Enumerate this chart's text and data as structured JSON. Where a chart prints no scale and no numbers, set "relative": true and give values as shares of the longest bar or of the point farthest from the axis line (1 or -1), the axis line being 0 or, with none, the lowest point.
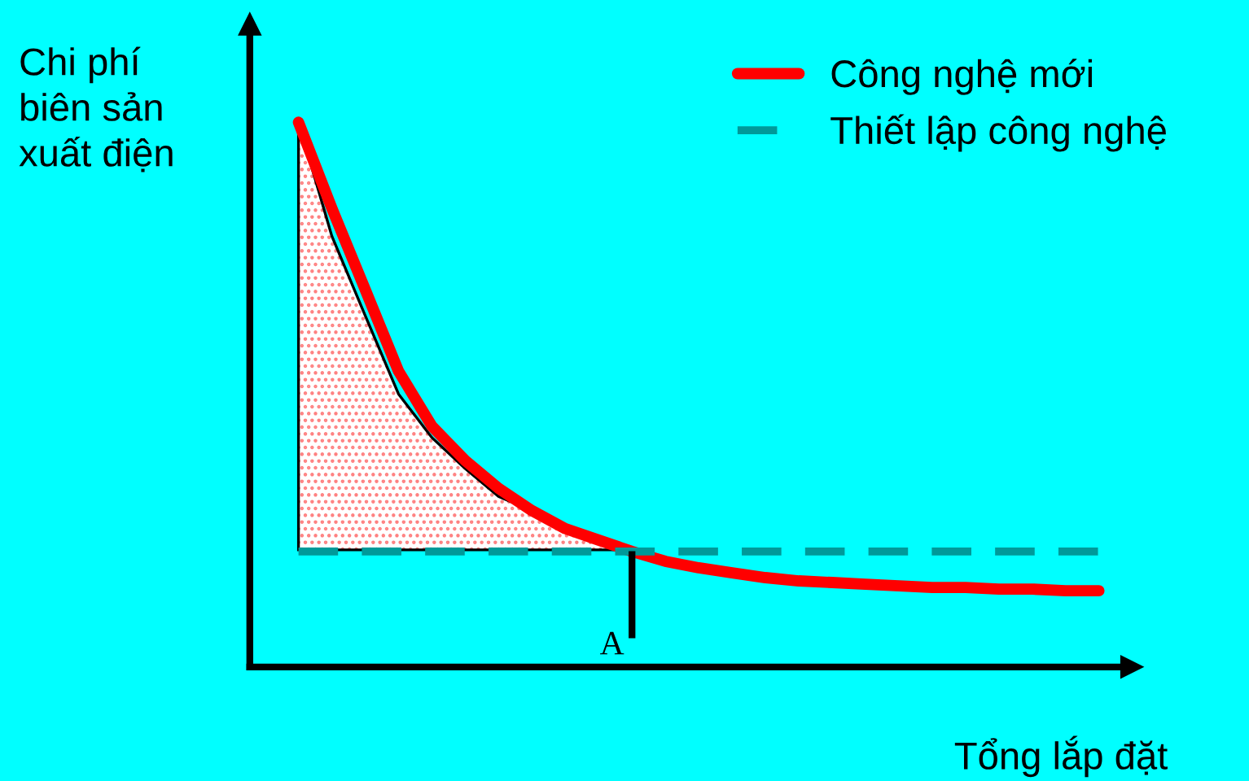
{
  "chart_data": {
    "type": "line",
    "relative": true,
    "xlabel": "Tổng lắp đặt",
    "ylabel": "Chi phí\nbiên sản\nxuất điện",
    "legend": "top right",
    "annotations": [
      "A"
    ],
    "categories": [
      null,
      null,
      null,
      null,
      null,
      null,
      null,
      null,
      null,
      null,
      null,
      null,
      null,
      null,
      null,
      null,
      null,
      null,
      null,
      null,
      null,
      null,
      null,
      null,
      null
    ],
    "series": [
      {
        "type": "area",
        "color": "#ff8080",
        "values": [
          1.0,
          0.791,
          0.645,
          0.501,
          0.421,
          0.364,
          0.313,
          0.287,
          0.26,
          0.236,
          0.215,
          null,
          null,
          null,
          null,
          null,
          null,
          null,
          null,
          null,
          null,
          null,
          null,
          null,
          null
        ]
      },
      {
        "name": "Công nghệ mới",
        "color": "#ff0000",
        "line_style": "solid",
        "values": [
          1.0,
          0.842,
          0.693,
          0.543,
          0.442,
          0.379,
          0.328,
          0.287,
          0.254,
          0.233,
          0.212,
          0.194,
          0.182,
          0.173,
          0.164,
          0.158,
          0.155,
          0.152,
          0.149,
          0.146,
          0.146,
          0.143,
          0.143,
          0.14,
          0.14
        ]
      },
      {
        "name": "Thiết lập công nghệ",
        "color": "#009999",
        "line_style": "dashed",
        "values": [
          0.212,
          0.212,
          0.212,
          0.212,
          0.212,
          0.212,
          0.212,
          0.212,
          0.212,
          0.212,
          0.212,
          0.212,
          0.212,
          0.212,
          0.212,
          0.212,
          0.212,
          0.212,
          0.212,
          0.212,
          0.212,
          0.212,
          0.212,
          0.212,
          0.212
        ]
      }
    ]
  }
}
